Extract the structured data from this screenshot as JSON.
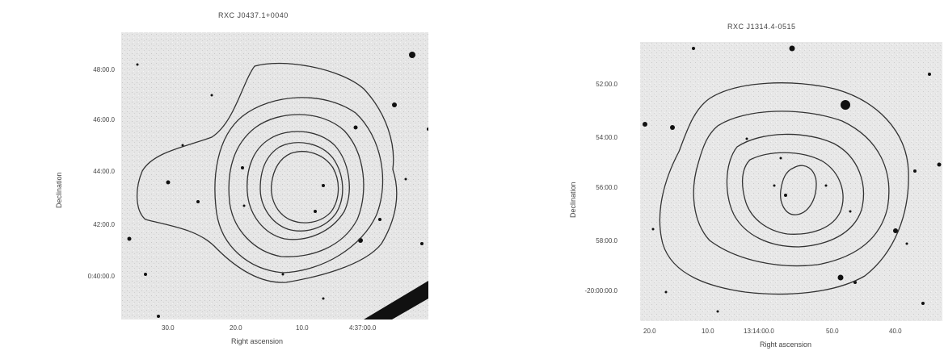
{
  "figures": [
    {
      "title": "RXC J0437.1+0040",
      "ytick_labels": [
        "48:00.0",
        "46:00.0",
        "44:00.0",
        "42:00.0",
        "0:40:00.0"
      ],
      "xtick_labels": [
        "30.0",
        "20.0",
        "10.0",
        "4:37:00.0"
      ],
      "xlabel": "Right ascension",
      "ylabel": "Declination"
    },
    {
      "title": "RXC J1314.4-0515",
      "ytick_labels": [
        "52:00.0",
        "54:00.0",
        "56:00.0",
        "58:00.0",
        "-20:00:00.0"
      ],
      "xtick_labels": [
        "20.0",
        "10.0",
        "13:14:00.0",
        "50.0",
        "40.0"
      ],
      "xlabel": "Right ascension",
      "ylabel": "Declination"
    }
  ],
  "colors": {
    "background": "#ffffff",
    "sky": "#e4e4e4",
    "contour": "#333333",
    "star": "#111111"
  }
}
